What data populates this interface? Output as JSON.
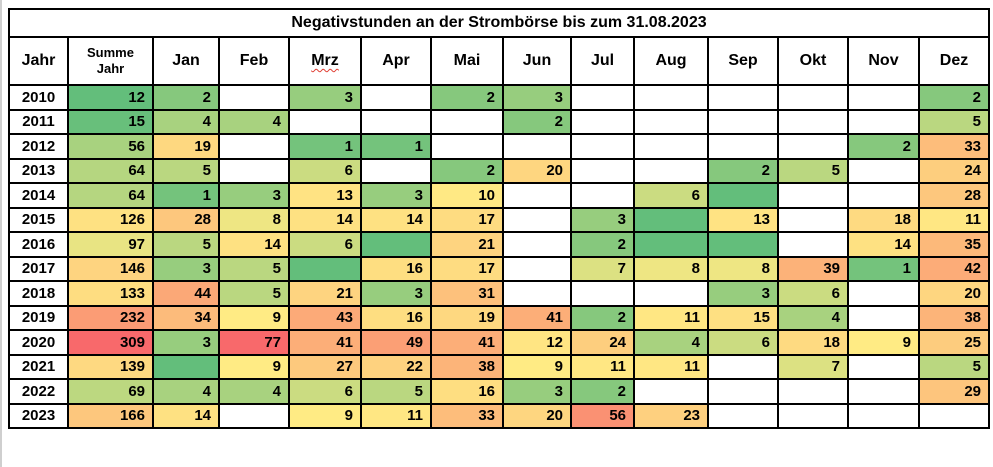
{
  "chart_data": {
    "type": "heatmap_table",
    "title": "Negativstunden an der Strombörse bis zum 31.08.2023",
    "columns": [
      {
        "label": "Jahr"
      },
      {
        "label": "Summe Jahr"
      },
      {
        "label": "Jan"
      },
      {
        "label": "Feb"
      },
      {
        "label": "Mrz",
        "spellcheck_underline": true
      },
      {
        "label": "Apr"
      },
      {
        "label": "Mai"
      },
      {
        "label": "Jun"
      },
      {
        "label": "Jul"
      },
      {
        "label": "Aug"
      },
      {
        "label": "Sep"
      },
      {
        "label": "Okt"
      },
      {
        "label": "Nov"
      },
      {
        "label": "Dez"
      }
    ],
    "color_scale": {
      "low": "#63BE7B",
      "mid": "#FFEB84",
      "high": "#F8696B",
      "note": "3-color scale green-yellow-red; colored cells without a number represent 0; white cells are empty"
    },
    "rows": [
      {
        "year": "2010",
        "sum": {
          "v": 12,
          "c": "#63BE7B"
        },
        "months": [
          {
            "v": 2,
            "c": "#86C87D"
          },
          null,
          {
            "v": 3,
            "c": "#97CD7E"
          },
          null,
          {
            "v": 2,
            "c": "#86C87D"
          },
          {
            "v": 3,
            "c": "#97CD7E"
          },
          null,
          null,
          null,
          null,
          null,
          {
            "v": 2,
            "c": "#86C87D"
          }
        ]
      },
      {
        "year": "2011",
        "sum": {
          "v": 15,
          "c": "#68BF7B"
        },
        "months": [
          {
            "v": 4,
            "c": "#A8D27F"
          },
          {
            "v": 4,
            "c": "#A8D27F"
          },
          null,
          null,
          null,
          {
            "v": 2,
            "c": "#86C87D"
          },
          null,
          null,
          null,
          null,
          null,
          {
            "v": 5,
            "c": "#BAD780"
          }
        ]
      },
      {
        "year": "2012",
        "sum": {
          "v": 56,
          "c": "#A8D27F"
        },
        "months": [
          {
            "v": 19,
            "c": "#FED880"
          },
          null,
          {
            "v": 1,
            "c": "#74C37C"
          },
          {
            "v": 1,
            "c": "#74C37C"
          },
          null,
          null,
          null,
          null,
          null,
          null,
          {
            "v": 2,
            "c": "#86C87D"
          },
          {
            "v": 33,
            "c": "#FDBD7B"
          }
        ]
      },
      {
        "year": "2013",
        "sum": {
          "v": 64,
          "c": "#B5D680"
        },
        "months": [
          {
            "v": 5,
            "c": "#BAD780"
          },
          null,
          {
            "v": 6,
            "c": "#CBDC81"
          },
          null,
          {
            "v": 2,
            "c": "#86C87D"
          },
          {
            "v": 20,
            "c": "#FED680"
          },
          null,
          null,
          {
            "v": 2,
            "c": "#86C87D"
          },
          {
            "v": 5,
            "c": "#BAD780"
          },
          null,
          {
            "v": 24,
            "c": "#FDCE7E"
          }
        ]
      },
      {
        "year": "2014",
        "sum": {
          "v": 64,
          "c": "#B5D680"
        },
        "months": [
          {
            "v": 1,
            "c": "#74C37C"
          },
          {
            "v": 3,
            "c": "#97CD7E"
          },
          {
            "v": 13,
            "c": "#FFE383"
          },
          {
            "v": 3,
            "c": "#97CD7E"
          },
          {
            "v": 10,
            "c": "#FFE984"
          },
          null,
          null,
          {
            "v": 6,
            "c": "#CBDC81"
          },
          {
            "v": 0,
            "c": "#63BE7B"
          },
          null,
          null,
          {
            "v": 28,
            "c": "#FDC77D"
          }
        ]
      },
      {
        "year": "2015",
        "sum": {
          "v": 126,
          "c": "#FEE182"
        },
        "months": [
          {
            "v": 28,
            "c": "#FDC77D"
          },
          {
            "v": 8,
            "c": "#EEE683"
          },
          {
            "v": 14,
            "c": "#FEE182"
          },
          {
            "v": 14,
            "c": "#FEE182"
          },
          {
            "v": 17,
            "c": "#FEDC81"
          },
          null,
          {
            "v": 3,
            "c": "#97CD7E"
          },
          {
            "v": 0,
            "c": "#63BE7B"
          },
          {
            "v": 13,
            "c": "#FFE383"
          },
          null,
          {
            "v": 18,
            "c": "#FEDA81"
          },
          {
            "v": 11,
            "c": "#FFE783"
          }
        ]
      },
      {
        "year": "2016",
        "sum": {
          "v": 97,
          "c": "#E8E483"
        },
        "months": [
          {
            "v": 5,
            "c": "#BAD780"
          },
          {
            "v": 14,
            "c": "#FEE182"
          },
          {
            "v": 6,
            "c": "#CBDC81"
          },
          {
            "v": 0,
            "c": "#63BE7B"
          },
          {
            "v": 21,
            "c": "#FED480"
          },
          null,
          {
            "v": 2,
            "c": "#86C87D"
          },
          {
            "v": 0,
            "c": "#63BE7B"
          },
          {
            "v": 0,
            "c": "#63BE7B"
          },
          null,
          {
            "v": 14,
            "c": "#FEE182"
          },
          {
            "v": 35,
            "c": "#FCB97A"
          }
        ]
      },
      {
        "year": "2017",
        "sum": {
          "v": 146,
          "c": "#FED480"
        },
        "months": [
          {
            "v": 3,
            "c": "#97CD7E"
          },
          {
            "v": 5,
            "c": "#BAD780"
          },
          {
            "v": 0,
            "c": "#63BE7B"
          },
          {
            "v": 16,
            "c": "#FEDE81"
          },
          {
            "v": 17,
            "c": "#FEDC81"
          },
          null,
          {
            "v": 7,
            "c": "#DCE182"
          },
          {
            "v": 8,
            "c": "#EEE683"
          },
          {
            "v": 8,
            "c": "#EEE683"
          },
          {
            "v": 39,
            "c": "#FCB279"
          },
          {
            "v": 1,
            "c": "#74C37C"
          },
          {
            "v": 42,
            "c": "#FCAC78"
          }
        ]
      },
      {
        "year": "2018",
        "sum": {
          "v": 133,
          "c": "#FEDD81"
        },
        "months": [
          {
            "v": 44,
            "c": "#FBA877"
          },
          {
            "v": 5,
            "c": "#BAD780"
          },
          {
            "v": 21,
            "c": "#FED480"
          },
          {
            "v": 3,
            "c": "#97CD7E"
          },
          {
            "v": 31,
            "c": "#FDC17C"
          },
          null,
          null,
          null,
          {
            "v": 3,
            "c": "#97CD7E"
          },
          {
            "v": 6,
            "c": "#CBDC81"
          },
          null,
          {
            "v": 20,
            "c": "#FED680"
          }
        ]
      },
      {
        "year": "2019",
        "sum": {
          "v": 232,
          "c": "#FB9C75"
        },
        "months": [
          {
            "v": 34,
            "c": "#FCBB7B"
          },
          {
            "v": 9,
            "c": "#FFEB84"
          },
          {
            "v": 43,
            "c": "#FCAA78"
          },
          {
            "v": 16,
            "c": "#FEDE81"
          },
          {
            "v": 19,
            "c": "#FED880"
          },
          {
            "v": 41,
            "c": "#FCAE78"
          },
          {
            "v": 2,
            "c": "#86C87D"
          },
          {
            "v": 11,
            "c": "#FFE783"
          },
          {
            "v": 15,
            "c": "#FEE082"
          },
          {
            "v": 4,
            "c": "#A8D27F"
          },
          null,
          {
            "v": 38,
            "c": "#FCB479"
          }
        ]
      },
      {
        "year": "2020",
        "sum": {
          "v": 309,
          "c": "#F8696B"
        },
        "months": [
          {
            "v": 3,
            "c": "#97CD7E"
          },
          {
            "v": 77,
            "c": "#F8696B"
          },
          {
            "v": 41,
            "c": "#FCAE78"
          },
          {
            "v": 49,
            "c": "#FB9F75"
          },
          {
            "v": 41,
            "c": "#FCAE78"
          },
          {
            "v": 12,
            "c": "#FFE583"
          },
          {
            "v": 24,
            "c": "#FDCE7E"
          },
          {
            "v": 4,
            "c": "#A8D27F"
          },
          {
            "v": 6,
            "c": "#CBDC81"
          },
          {
            "v": 18,
            "c": "#FEDA81"
          },
          {
            "v": 9,
            "c": "#FFEB84"
          },
          {
            "v": 25,
            "c": "#FDCC7E"
          }
        ]
      },
      {
        "year": "2021",
        "sum": {
          "v": 139,
          "c": "#FED981"
        },
        "months": [
          {
            "v": 0,
            "c": "#63BE7B"
          },
          {
            "v": 9,
            "c": "#FFEB84"
          },
          {
            "v": 27,
            "c": "#FDC97D"
          },
          {
            "v": 22,
            "c": "#FED27F"
          },
          {
            "v": 38,
            "c": "#FCB479"
          },
          {
            "v": 9,
            "c": "#FFEB84"
          },
          {
            "v": 11,
            "c": "#FFE783"
          },
          {
            "v": 11,
            "c": "#FFE783"
          },
          null,
          {
            "v": 7,
            "c": "#DCE182"
          },
          null,
          {
            "v": 5,
            "c": "#BAD780"
          }
        ]
      },
      {
        "year": "2022",
        "sum": {
          "v": 69,
          "c": "#BCD880"
        },
        "months": [
          {
            "v": 4,
            "c": "#A8D27F"
          },
          {
            "v": 4,
            "c": "#A8D27F"
          },
          {
            "v": 6,
            "c": "#CBDC81"
          },
          {
            "v": 5,
            "c": "#BAD780"
          },
          {
            "v": 16,
            "c": "#FEDE81"
          },
          {
            "v": 3,
            "c": "#97CD7E"
          },
          {
            "v": 2,
            "c": "#86C87D"
          },
          null,
          null,
          null,
          null,
          {
            "v": 29,
            "c": "#FDC57D"
          }
        ]
      },
      {
        "year": "2023",
        "sum": {
          "v": 166,
          "c": "#FDC77D"
        },
        "months": [
          {
            "v": 14,
            "c": "#FEE182"
          },
          null,
          {
            "v": 9,
            "c": "#FFEB84"
          },
          {
            "v": 11,
            "c": "#FFE783"
          },
          {
            "v": 33,
            "c": "#FDBD7B"
          },
          {
            "v": 20,
            "c": "#FED680"
          },
          {
            "v": 56,
            "c": "#FA9173"
          },
          {
            "v": 23,
            "c": "#FED07F"
          },
          null,
          null,
          null,
          null
        ]
      }
    ]
  }
}
